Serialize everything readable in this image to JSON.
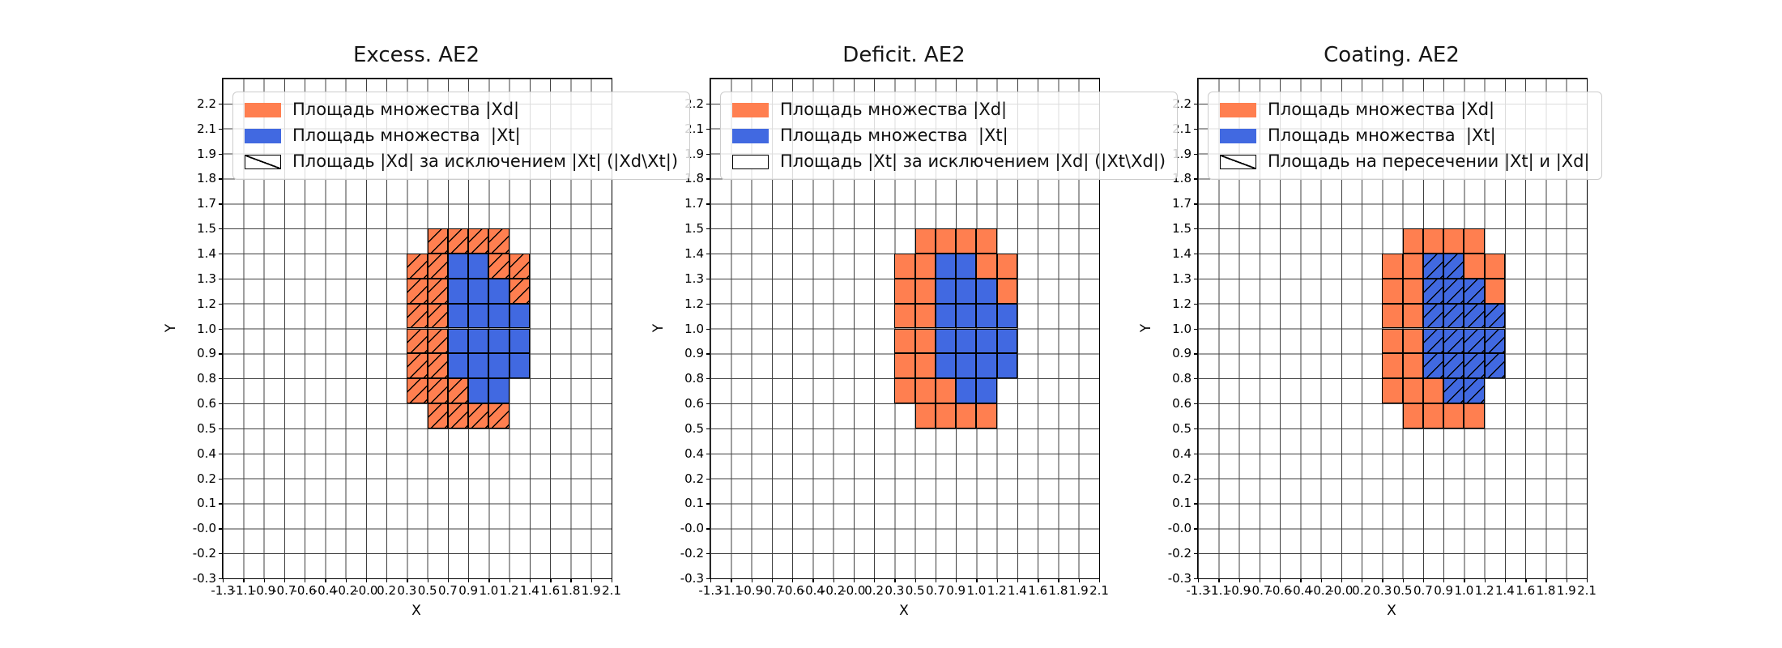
{
  "figure": {
    "background": "#ffffff"
  },
  "axes": {
    "xlabel": "X",
    "ylabel": "Y",
    "x_ticks": [
      "-1.3",
      "-1.1",
      "-0.9",
      "-0.7",
      "-0.6",
      "-0.4",
      "-0.2",
      "-0.0",
      "0.2",
      "0.3",
      "0.5",
      "0.7",
      "0.9",
      "1.0",
      "1.2",
      "1.4",
      "1.6",
      "1.8",
      "1.9",
      "2.1"
    ],
    "y_ticks": [
      "2.2",
      "2.1",
      "1.9",
      "1.8",
      "1.7",
      "1.5",
      "1.4",
      "1.3",
      "1.2",
      "1.0",
      "0.9",
      "0.8",
      "0.6",
      "0.5",
      "0.4",
      "0.2",
      "0.1",
      "-0.0",
      "-0.2",
      "-0.3"
    ]
  },
  "colors": {
    "xd": "#ff7f50",
    "xt": "#4169e1",
    "grid": "#3f3f3f",
    "cell_border": "#000000",
    "legend_border": "#cccccc"
  },
  "subplots": [
    {
      "title": "Excess. AE2",
      "hatch_on": "orange",
      "legend": [
        {
          "label": "Площадь множества |Xd|",
          "swatch": "xd"
        },
        {
          "label": "Площадь множества  |Xt|",
          "swatch": "xt"
        },
        {
          "label": "Площадь |Xd| за исключением |Xt| (|Xd\\Xt|)",
          "swatch": "hatch"
        }
      ]
    },
    {
      "title": "Deficit. AE2",
      "hatch_on": "none",
      "legend": [
        {
          "label": "Площадь множества |Xd|",
          "swatch": "xd"
        },
        {
          "label": "Площадь множества  |Xt|",
          "swatch": "xt"
        },
        {
          "label": "Площадь |Xt| за исключением |Xd| (|Xt\\Xd|)",
          "swatch": "plain"
        }
      ]
    },
    {
      "title": "Coating. AE2",
      "hatch_on": "blue",
      "legend": [
        {
          "label": "Площадь множества |Xd|",
          "swatch": "xd"
        },
        {
          "label": "Площадь множества  |Xt|",
          "swatch": "xt"
        },
        {
          "label": "Площадь на пересечении |Xt| и |Xd|",
          "swatch": "hatch"
        }
      ]
    }
  ],
  "chart_data": {
    "type": "heatmap",
    "title": [
      "Excess. AE2",
      "Deficit. AE2",
      "Coating. AE2"
    ],
    "xlabel": "X",
    "ylabel": "Y",
    "grid": "on",
    "legend_position": "upper left",
    "x_tick_labels": [
      "-1.3",
      "-1.1",
      "-0.9",
      "-0.7",
      "-0.6",
      "-0.4",
      "-0.2",
      "-0.0",
      "0.2",
      "0.3",
      "0.5",
      "0.7",
      "0.9",
      "1.0",
      "1.2",
      "1.4",
      "1.6",
      "1.8",
      "1.9",
      "2.1"
    ],
    "y_tick_labels": [
      "2.2",
      "2.1",
      "1.9",
      "1.8",
      "1.7",
      "1.5",
      "1.4",
      "1.3",
      "1.2",
      "1.0",
      "0.9",
      "0.8",
      "0.6",
      "0.5",
      "0.4",
      "0.2",
      "0.1",
      "-0.0",
      "-0.2",
      "-0.3"
    ],
    "cell_legend": "o = set |Xd| (orange), b = set |Xt| (blue), . = empty; matrix rows go top to bottom",
    "blob_matrix": [
      ".oooo.",
      "oobboo",
      "oobbbo",
      "oobbbb",
      "oobbbb",
      "oobbbb",
      "ooobb.",
      ".oooo."
    ],
    "blob_x_span_ticks": [
      "0.3",
      "1.4"
    ],
    "blob_y_span_ticks": [
      "1.5",
      "0.5"
    ],
    "counts": {
      "orange_cells": 24,
      "blue_cells": 19
    },
    "subplots": [
      {
        "title": "Excess. AE2",
        "hatched_cells": "orange (|Xd| \\ |Xt|)"
      },
      {
        "title": "Deficit. AE2",
        "hatched_cells": "none (|Xt| \\ |Xd| is empty)"
      },
      {
        "title": "Coating. AE2",
        "hatched_cells": "blue (|Xt| ∩ |Xd|)"
      }
    ]
  }
}
